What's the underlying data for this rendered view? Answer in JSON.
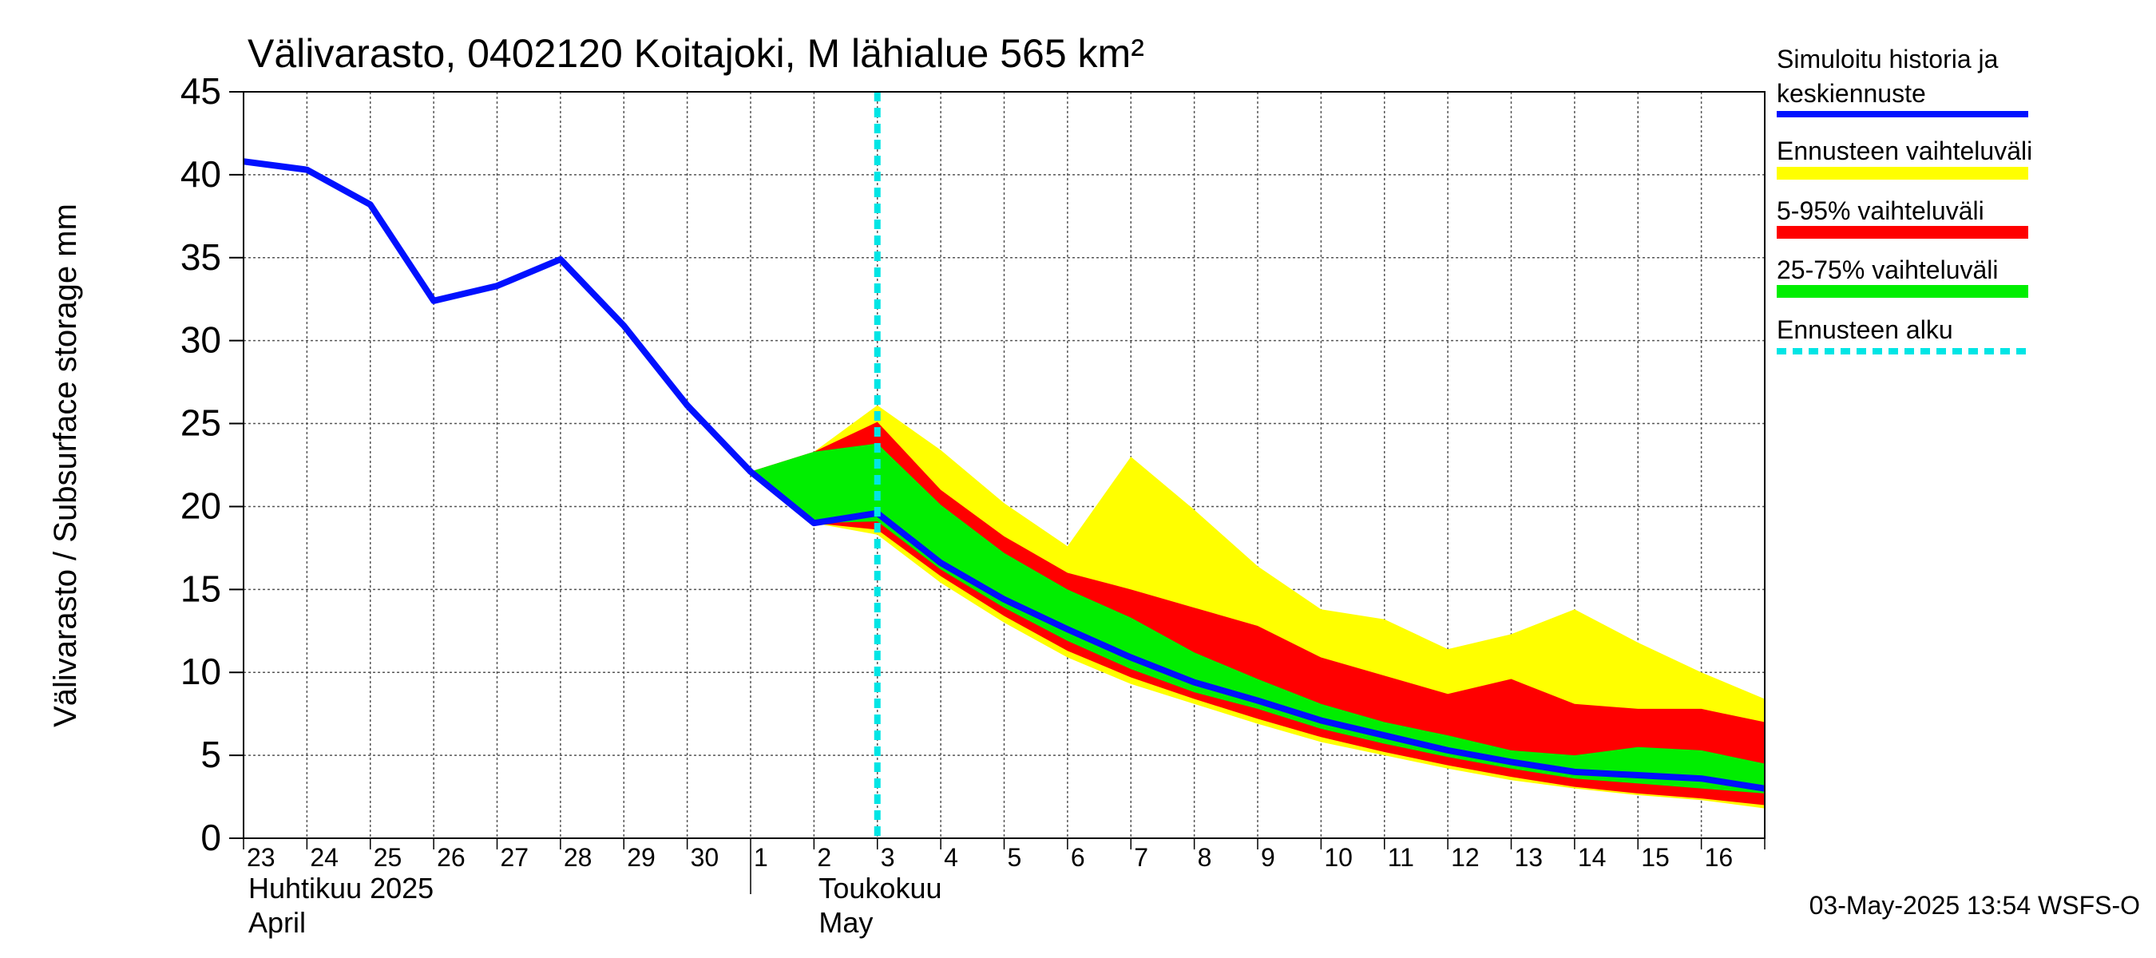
{
  "colors": {
    "history": "#0010ff",
    "yellow": "#ffff00",
    "red": "#ff0000",
    "green": "#00ee00",
    "forecast_start": "#00e5e5",
    "grid": "#555555"
  },
  "chart_data": {
    "type": "area",
    "title": "Välivarasto, 0402120 Koitajoki, M lähialue 565 km²",
    "ylabel": "Välivarasto / Subsurface storage  mm",
    "ylim": [
      0,
      45
    ],
    "yticks": [
      0,
      5,
      10,
      15,
      20,
      25,
      30,
      35,
      40,
      45
    ],
    "xlim": [
      0,
      24
    ],
    "x_tick_labels": [
      "23",
      "24",
      "25",
      "26",
      "27",
      "28",
      "29",
      "30",
      "1",
      "2",
      "3",
      "4",
      "5",
      "6",
      "7",
      "8",
      "9",
      "10",
      "11",
      "12",
      "13",
      "14",
      "15",
      "16"
    ],
    "month_labels": [
      {
        "line1": "Huhtikuu  2025",
        "line2": "April",
        "at": 0
      },
      {
        "line1": "Toukokuu",
        "line2": "May",
        "at": 9
      }
    ],
    "forecast_start_x": 10,
    "history": {
      "name": "Simuloitu historia ja keskiennuste",
      "x": [
        0,
        1,
        2,
        3,
        4,
        5,
        6,
        7,
        8,
        9,
        10,
        11,
        12,
        13,
        14,
        15,
        16,
        17,
        18,
        19,
        20,
        21,
        22,
        23,
        24
      ],
      "values": [
        40.8,
        40.3,
        38.2,
        32.4,
        33.3,
        34.9,
        30.9,
        26.1,
        22.1,
        19.0,
        19.6,
        16.6,
        14.4,
        12.6,
        10.9,
        9.4,
        8.3,
        7.1,
        6.2,
        5.3,
        4.6,
        4.0,
        3.8,
        3.6,
        3.0
      ]
    },
    "bands": [
      {
        "name": "Ennusteen vaihteluväli",
        "x": [
          8,
          9,
          10,
          11,
          12,
          13,
          14,
          15,
          16,
          17,
          18,
          19,
          20,
          21,
          22,
          23,
          24
        ],
        "upper": [
          22.1,
          23.3,
          26.1,
          23.4,
          20.2,
          17.6,
          23.0,
          19.8,
          16.4,
          13.8,
          13.2,
          11.4,
          12.3,
          13.8,
          11.8,
          10.0,
          8.4
        ],
        "lower": [
          22.1,
          19.0,
          18.3,
          15.4,
          13.0,
          10.9,
          9.3,
          8.1,
          6.9,
          5.8,
          5.0,
          4.2,
          3.5,
          3.0,
          2.6,
          2.3,
          1.8
        ]
      },
      {
        "name": "5-95% vaihteluväli",
        "x": [
          8,
          9,
          10,
          11,
          12,
          13,
          14,
          15,
          16,
          17,
          18,
          19,
          20,
          21,
          22,
          23,
          24
        ],
        "upper": [
          22.1,
          23.3,
          25.1,
          21.0,
          18.2,
          16.0,
          15.0,
          13.9,
          12.8,
          10.9,
          9.8,
          8.7,
          9.6,
          8.1,
          7.8,
          7.8,
          7.0
        ],
        "lower": [
          22.1,
          19.0,
          18.6,
          15.8,
          13.4,
          11.3,
          9.7,
          8.4,
          7.2,
          6.1,
          5.2,
          4.4,
          3.7,
          3.1,
          2.7,
          2.4,
          2.0
        ]
      },
      {
        "name": "25-75% vaihteluväli",
        "x": [
          8,
          9,
          10,
          11,
          12,
          13,
          14,
          15,
          16,
          17,
          18,
          19,
          20,
          21,
          22,
          23,
          24
        ],
        "upper": [
          22.1,
          23.3,
          23.8,
          20.1,
          17.2,
          15.0,
          13.3,
          11.2,
          9.6,
          8.1,
          7.0,
          6.2,
          5.3,
          5.0,
          5.5,
          5.3,
          4.5
        ],
        "lower": [
          22.1,
          19.0,
          19.1,
          16.2,
          13.9,
          11.9,
          10.2,
          8.8,
          7.8,
          6.6,
          5.7,
          4.9,
          4.2,
          3.6,
          3.3,
          3.0,
          2.7
        ]
      }
    ],
    "legend": [
      {
        "label": "Simuloitu historia ja",
        "label2": "keskiennuste",
        "style": "history"
      },
      {
        "label": "Ennusteen vaihteluväli",
        "style": "yellow"
      },
      {
        "label": "5-95% vaihteluväli",
        "style": "red"
      },
      {
        "label": "25-75% vaihteluväli",
        "style": "green"
      },
      {
        "label": "Ennusteen alku",
        "style": "forecast_start"
      }
    ],
    "legend_placement": "right"
  },
  "footer": {
    "timestamp": "03-May-2025 13:54 WSFS-O"
  }
}
